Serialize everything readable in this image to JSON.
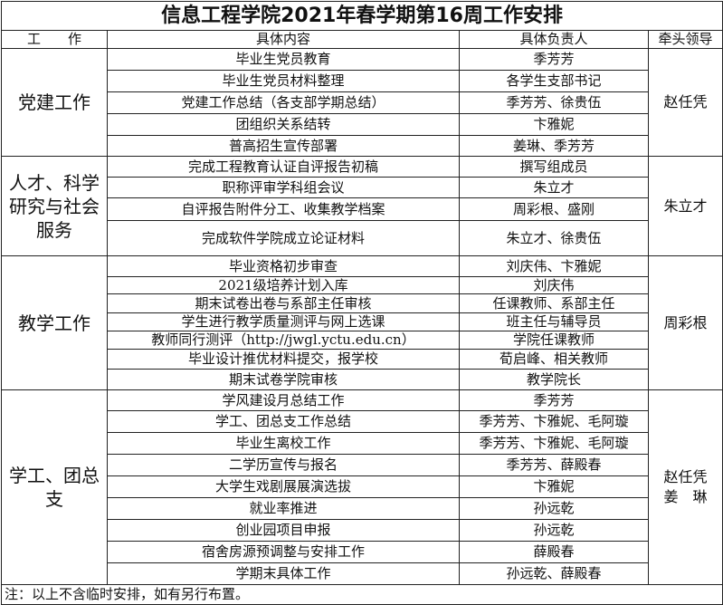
{
  "title": "信息工程学院2021年春学期第16周工作安排",
  "headers": {
    "category": "工　　作",
    "content": "具体内容",
    "owner": "具体负责人",
    "leader": "牵头领导"
  },
  "sections": [
    {
      "category": "党建工作",
      "leader": "赵任凭",
      "rows": [
        {
          "content": "毕业生党员教育",
          "owner": "季芳芳"
        },
        {
          "content": "毕业生党员材料整理",
          "owner": "各学生支部书记"
        },
        {
          "content": "党建工作总结（各支部学期总结）",
          "owner": "季芳芳、徐贵伍"
        },
        {
          "content": "团组织关系结转",
          "owner": "卞雅妮"
        },
        {
          "content": "普高招生宣传部署",
          "owner": "姜琳、季芳芳"
        }
      ]
    },
    {
      "category": "人才、科学\n研究与社会\n服务",
      "leader": "朱立才",
      "rows": [
        {
          "content": "完成工程教育认证自评报告初稿",
          "owner": "撰写组成员"
        },
        {
          "content": "职称评审学科组会议",
          "owner": "朱立才"
        },
        {
          "content": "自评报告附件分工、收集教学档案",
          "owner": "周彩根、盛刚"
        },
        {
          "content": "完成软件学院成立论证材料",
          "owner": "朱立才、徐贵伍"
        }
      ]
    },
    {
      "category": "教学工作",
      "leader": "周彩根",
      "rows": [
        {
          "content": "毕业资格初步审查",
          "owner": "刘庆伟、卞雅妮"
        },
        {
          "content": "2021级培养计划入库",
          "owner": "刘庆伟"
        },
        {
          "content": "期末试卷出卷与系部主任审核",
          "owner": "任课教师、系部主任"
        },
        {
          "content": "学生进行教学质量测评与网上选课",
          "owner": "班主任与辅导员"
        },
        {
          "content": "教师同行测评（http://jwgl.yctu.edu.cn）",
          "owner": "学院任课教师"
        },
        {
          "content": "毕业设计推优材料提交，报学校",
          "owner": "荀启峰、相关教师"
        },
        {
          "content": "期末试卷学院审核",
          "owner": "教学院长"
        }
      ]
    },
    {
      "category": "学工、团总\n支",
      "leader": "赵任凭\n姜　琳",
      "rows": [
        {
          "content": "学风建设月总结工作",
          "owner": "季芳芳"
        },
        {
          "content": "学工、团总支工作总结",
          "owner": "季芳芳、卞雅妮、毛阿璇"
        },
        {
          "content": "毕业生离校工作",
          "owner": "季芳芳、卞雅妮、毛阿璇"
        },
        {
          "content": "二学历宣传与报名",
          "owner": "季芳芳、薛殿春"
        },
        {
          "content": "大学生戏剧展展演选拔",
          "owner": "卞雅妮"
        },
        {
          "content": "就业率推进",
          "owner": "孙远乾"
        },
        {
          "content": "创业园项目申报",
          "owner": "孙远乾"
        },
        {
          "content": "宿舍房源预调整与安排工作",
          "owner": "薛殿春"
        },
        {
          "content": "学期末具体工作",
          "owner": "孙远乾、薛殿春"
        }
      ]
    }
  ],
  "note": "注：以上不含临时安排，如有另行布置。"
}
